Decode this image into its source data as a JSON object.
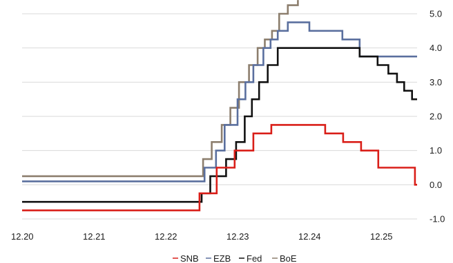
{
  "chart_data": {
    "type": "line",
    "grid": true,
    "xlim": [
      2020.0,
      2025.55
    ],
    "ylim": [
      -1.1,
      5.4
    ],
    "x_ticks": [
      2020,
      2021,
      2022,
      2023,
      2024,
      2025
    ],
    "x_tick_labels": [
      "12.20",
      "12.21",
      "12.22",
      "12.23",
      "12.24",
      "12.25"
    ],
    "y_ticks": [
      -1,
      0,
      1,
      2,
      3,
      4,
      5
    ],
    "y_tick_labels": [
      "-1.0",
      "0.0",
      "1.0",
      "2.0",
      "3.0",
      "4.0",
      "5.0"
    ],
    "legend_position": "bottom-center",
    "series": [
      {
        "name": "SNB",
        "color": "#d91e18",
        "points": [
          [
            2020.0,
            -0.75
          ],
          [
            2022.47,
            -0.75
          ],
          [
            2022.47,
            -0.25
          ],
          [
            2022.71,
            -0.25
          ],
          [
            2022.71,
            0.5
          ],
          [
            2022.96,
            0.5
          ],
          [
            2022.96,
            1.0
          ],
          [
            2023.22,
            1.0
          ],
          [
            2023.22,
            1.5
          ],
          [
            2023.47,
            1.5
          ],
          [
            2023.47,
            1.75
          ],
          [
            2024.22,
            1.75
          ],
          [
            2024.22,
            1.5
          ],
          [
            2024.47,
            1.5
          ],
          [
            2024.47,
            1.25
          ],
          [
            2024.72,
            1.25
          ],
          [
            2024.72,
            1.0
          ],
          [
            2024.96,
            1.0
          ],
          [
            2024.96,
            0.5
          ],
          [
            2025.47,
            0.5
          ],
          [
            2025.47,
            0.0
          ],
          [
            2025.55,
            0.0
          ]
        ]
      },
      {
        "name": "EZB",
        "color": "#5a6f9e",
        "points": [
          [
            2020.0,
            0.1
          ],
          [
            2022.54,
            0.1
          ],
          [
            2022.54,
            0.5
          ],
          [
            2022.7,
            0.5
          ],
          [
            2022.7,
            1.0
          ],
          [
            2022.82,
            1.0
          ],
          [
            2022.82,
            1.75
          ],
          [
            2023.0,
            1.75
          ],
          [
            2023.0,
            2.5
          ],
          [
            2023.11,
            2.5
          ],
          [
            2023.11,
            3.0
          ],
          [
            2023.22,
            3.0
          ],
          [
            2023.22,
            3.5
          ],
          [
            2023.36,
            3.5
          ],
          [
            2023.36,
            4.0
          ],
          [
            2023.46,
            4.0
          ],
          [
            2023.46,
            4.25
          ],
          [
            2023.56,
            4.25
          ],
          [
            2023.56,
            4.5
          ],
          [
            2023.7,
            4.5
          ],
          [
            2023.7,
            4.75
          ],
          [
            2024.0,
            4.75
          ],
          [
            2024.0,
            4.5
          ],
          [
            2024.46,
            4.5
          ],
          [
            2024.46,
            4.25
          ],
          [
            2024.7,
            4.25
          ],
          [
            2024.7,
            3.75
          ],
          [
            2025.55,
            3.75
          ]
        ]
      },
      {
        "name": "Fed",
        "color": "#111111",
        "points": [
          [
            2020.0,
            -0.5
          ],
          [
            2022.5,
            -0.5
          ],
          [
            2022.5,
            -0.25
          ],
          [
            2022.62,
            -0.25
          ],
          [
            2022.62,
            0.25
          ],
          [
            2022.84,
            0.25
          ],
          [
            2022.84,
            0.75
          ],
          [
            2022.98,
            0.75
          ],
          [
            2022.98,
            1.25
          ],
          [
            2023.1,
            1.25
          ],
          [
            2023.1,
            2.0
          ],
          [
            2023.2,
            2.0
          ],
          [
            2023.2,
            2.5
          ],
          [
            2023.3,
            2.5
          ],
          [
            2023.3,
            3.0
          ],
          [
            2023.42,
            3.0
          ],
          [
            2023.42,
            3.5
          ],
          [
            2023.56,
            3.5
          ],
          [
            2023.56,
            4.0
          ],
          [
            2024.7,
            4.0
          ],
          [
            2024.7,
            3.75
          ],
          [
            2024.95,
            3.75
          ],
          [
            2024.95,
            3.5
          ],
          [
            2025.1,
            3.5
          ],
          [
            2025.1,
            3.25
          ],
          [
            2025.22,
            3.25
          ],
          [
            2025.22,
            3.0
          ],
          [
            2025.32,
            3.0
          ],
          [
            2025.32,
            2.75
          ],
          [
            2025.43,
            2.75
          ],
          [
            2025.43,
            2.5
          ],
          [
            2025.55,
            2.5
          ],
          [
            2025.55,
            2.25
          ],
          [
            2025.62,
            2.25
          ],
          [
            2025.62,
            2.0
          ],
          [
            2025.55,
            2.0
          ]
        ]
      },
      {
        "name": "BoE",
        "color": "#8c7e6d",
        "points": [
          [
            2020.0,
            0.25
          ],
          [
            2022.52,
            0.25
          ],
          [
            2022.52,
            0.75
          ],
          [
            2022.64,
            0.75
          ],
          [
            2022.64,
            1.25
          ],
          [
            2022.78,
            1.25
          ],
          [
            2022.78,
            1.75
          ],
          [
            2022.9,
            1.75
          ],
          [
            2022.9,
            2.25
          ],
          [
            2023.02,
            2.25
          ],
          [
            2023.02,
            3.0
          ],
          [
            2023.16,
            3.0
          ],
          [
            2023.16,
            3.5
          ],
          [
            2023.28,
            3.5
          ],
          [
            2023.28,
            4.0
          ],
          [
            2023.38,
            4.0
          ],
          [
            2023.38,
            4.25
          ],
          [
            2023.48,
            4.25
          ],
          [
            2023.48,
            4.5
          ],
          [
            2023.58,
            4.5
          ],
          [
            2023.58,
            5.0
          ],
          [
            2023.7,
            5.0
          ],
          [
            2023.7,
            5.25
          ],
          [
            2023.84,
            5.25
          ],
          [
            2023.84,
            5.4
          ]
        ]
      }
    ]
  },
  "legend": {
    "items": [
      {
        "label": "SNB",
        "color": "#d91e18"
      },
      {
        "label": "EZB",
        "color": "#5a6f9e"
      },
      {
        "label": "Fed",
        "color": "#111111"
      },
      {
        "label": "BoE",
        "color": "#8c7e6d"
      }
    ]
  }
}
